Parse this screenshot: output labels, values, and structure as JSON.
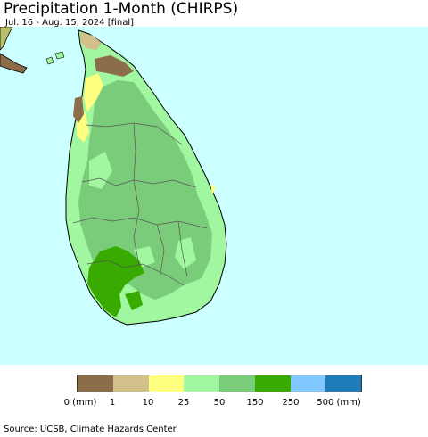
{
  "header": {
    "title": "Precipitation 1-Month (CHIRPS)",
    "subtitle": "Jul. 16 - Aug. 15, 2024 [final]"
  },
  "map": {
    "ocean_color": "#ccffff",
    "region": "Sri Lanka"
  },
  "legend": {
    "swatches": [
      "#8b6d4a",
      "#d2c08a",
      "#ffff80",
      "#a0f7a0",
      "#7acc7a",
      "#38aa00",
      "#80c8ff",
      "#1e7ab8"
    ],
    "labels": [
      "0 (mm)",
      "1",
      "10",
      "25",
      "50",
      "150",
      "250",
      "500 (mm)"
    ]
  },
  "footer": {
    "source": "Source: UCSB, Climate Hazards Center"
  }
}
